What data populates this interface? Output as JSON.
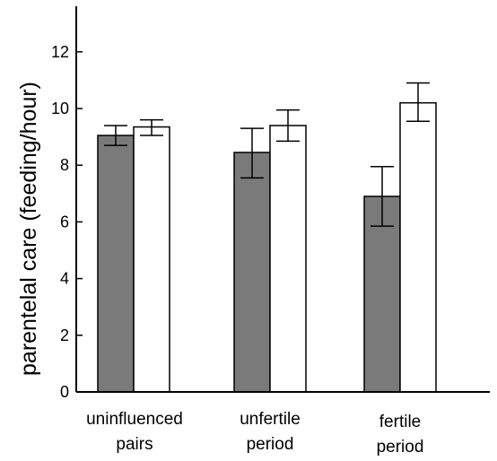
{
  "chart_data": {
    "type": "bar",
    "title": "",
    "xlabel": "",
    "ylabel": "parentelal care (feeding/hour)",
    "ylim": [
      0,
      13.5
    ],
    "yticks": [
      0,
      2,
      4,
      6,
      8,
      10,
      12
    ],
    "grid": false,
    "legend": "none",
    "categories": [
      {
        "line1": "uninfluenced",
        "line2": "pairs"
      },
      {
        "line1": "unfertile",
        "line2": "period"
      },
      {
        "line1": "fertile",
        "line2": "period"
      }
    ],
    "series": [
      {
        "color": "#7a7a7a",
        "values": [
          9.05,
          8.45,
          6.9
        ],
        "error_low": [
          8.7,
          7.55,
          5.85
        ],
        "error_high": [
          9.4,
          9.3,
          7.95
        ]
      },
      {
        "color": "#ffffff",
        "values": [
          9.35,
          9.4,
          10.2
        ],
        "error_low": [
          9.05,
          8.85,
          9.55
        ],
        "error_high": [
          9.6,
          9.95,
          10.9
        ]
      }
    ]
  }
}
